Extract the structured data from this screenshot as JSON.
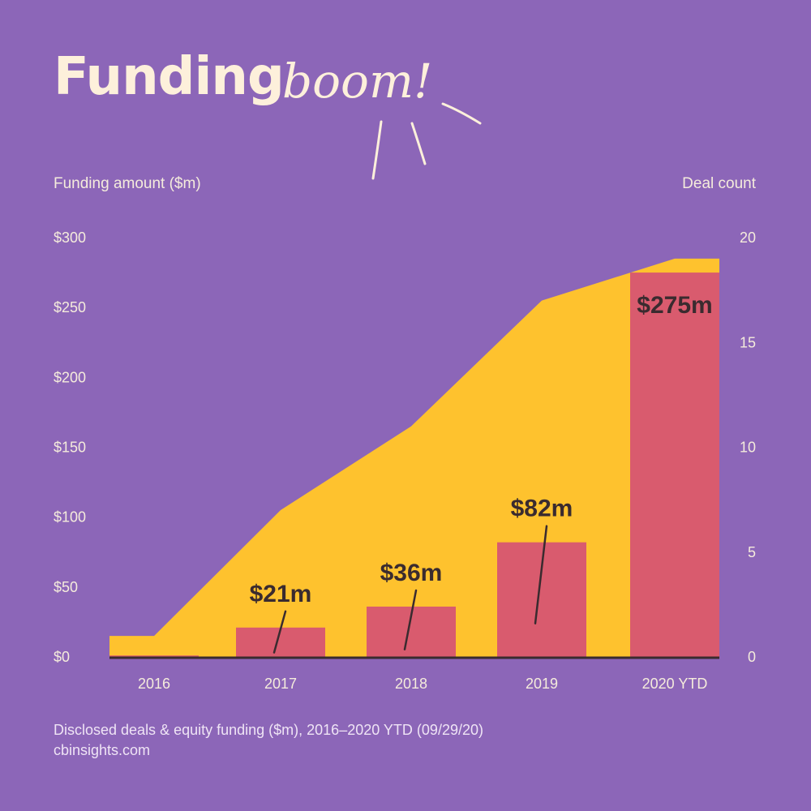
{
  "header": {
    "title_main": "Funding",
    "title_accent": "boom!"
  },
  "footer": {
    "note": "Disclosed deals & equity funding ($m), 2016–2020 YTD (09/29/20)",
    "source": "cbinsights.com"
  },
  "chart_data": {
    "type": "bar",
    "left_axis_title": "Funding amount ($m)",
    "right_axis_title": "Deal count",
    "categories": [
      "2016",
      "2017",
      "2018",
      "2019",
      "2020 YTD"
    ],
    "series": [
      {
        "name": "Funding amount ($m)",
        "kind": "bar",
        "axis": "left",
        "values": [
          1,
          21,
          36,
          82,
          275
        ],
        "labels": [
          "",
          "$21m",
          "$36m",
          "$82m",
          "$275m"
        ],
        "color": "#d95b6e"
      },
      {
        "name": "Deal count",
        "kind": "area",
        "axis": "right",
        "values": [
          1,
          7,
          11,
          17,
          19
        ],
        "color": "#fec22e"
      }
    ],
    "left_axis": {
      "ylim": [
        0,
        300
      ],
      "ticks": [
        0,
        50,
        100,
        150,
        200,
        250,
        300
      ],
      "tick_labels": [
        "$0",
        "$50",
        "$100",
        "$150",
        "$200",
        "$250",
        "$300"
      ]
    },
    "right_axis": {
      "ylim": [
        0,
        20
      ],
      "ticks": [
        0,
        5,
        10,
        15,
        20
      ],
      "tick_labels": [
        "0",
        "5",
        "10",
        "15",
        "20"
      ]
    },
    "grid": false,
    "legend": "none"
  }
}
